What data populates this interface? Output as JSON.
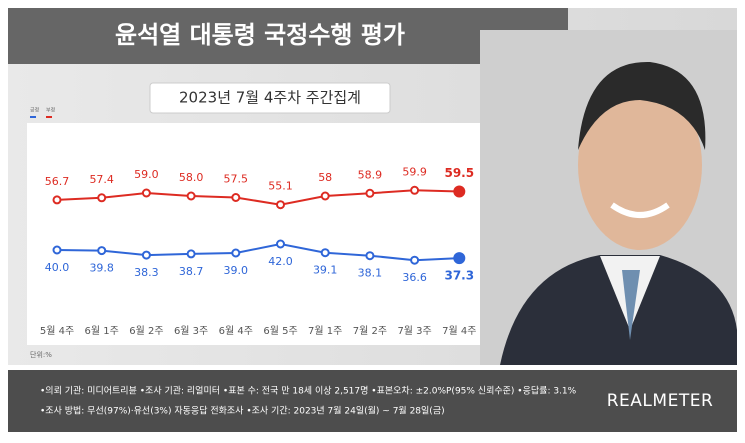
{
  "chart_data": {
    "type": "line",
    "title": "윤석열 대통령 국정수행 평가",
    "subtitle": "2023년 7월 4주차 주간집계",
    "unit_label": "단위:%",
    "categories": [
      "5월 4주",
      "6월 1주",
      "6월 2주",
      "6월 3주",
      "6월 4주",
      "6월 5주",
      "7월 1주",
      "7월 2주",
      "7월 3주",
      "7월 4주"
    ],
    "series": [
      {
        "name": "긍정",
        "color": "#2f66d8",
        "values": [
          40.0,
          39.8,
          38.3,
          38.7,
          39.0,
          42.0,
          39.1,
          38.1,
          36.6,
          37.3
        ],
        "value_labels": [
          "40.0",
          "39.8",
          "38.3",
          "38.7",
          "39.0",
          "42.0",
          "39.1",
          "38.1",
          "36.6",
          "37.3"
        ]
      },
      {
        "name": "부정",
        "color": "#dd2b22",
        "values": [
          56.7,
          57.4,
          59.0,
          58.0,
          57.5,
          55.1,
          58,
          58.9,
          59.9,
          59.5
        ],
        "value_labels": [
          "56.7",
          "57.4",
          "59.0",
          "58.0",
          "57.5",
          "55.1",
          "58",
          "58.9",
          "59.9",
          "59.5"
        ]
      }
    ]
  },
  "footer": [
    "•의뢰 기관: 미디어트리뷴 •조사 기관: 리얼미터 •표본 수: 전국 만 18세 이상 2,517명 •표본오차: ±2.0%P(95% 신뢰수준) •응답률: 3.1%",
    "•조사 방법: 무선(97%)·유선(3%) 자동응답 전화조사 •조사 기간: 2023년 7월 24일(월) ~ 7월 28일(금)"
  ],
  "brand": "REALMETER"
}
